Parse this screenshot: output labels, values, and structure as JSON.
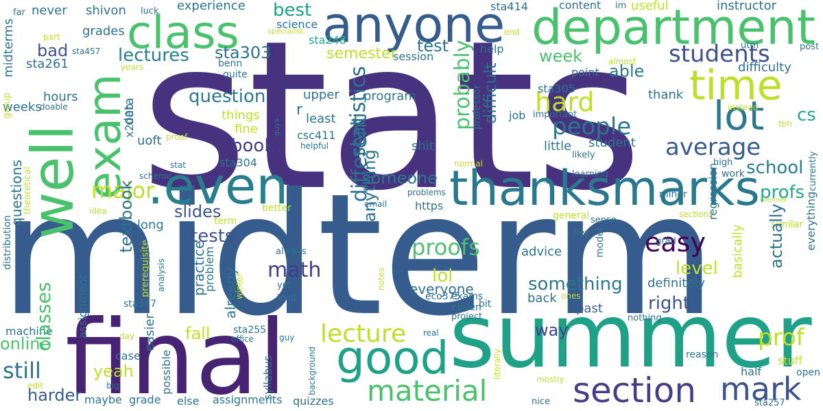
{
  "words": [
    {
      "text": "stats",
      "color": "#46327e"
    },
    {
      "text": "midterm",
      "color": "#365c8d"
    },
    {
      "text": "summer",
      "color": "#1fa187"
    },
    {
      "text": "final",
      "color": "#482374"
    },
    {
      "text": "department",
      "color": "#4ac16d"
    },
    {
      "text": "anyone",
      "color": "#365c8d"
    },
    {
      "text": "class",
      "color": "#4ac16d"
    },
    {
      "text": "well",
      "color": "#4ac16d"
    },
    {
      "text": "exam",
      "color": "#4ac16d"
    },
    {
      "text": "time",
      "color": "#bddf26"
    },
    {
      "text": "lot",
      "color": "#2a788e"
    },
    {
      "text": ".even",
      "color": "#277f8e"
    },
    {
      "text": "thanksmarks",
      "color": "#2a788e"
    },
    {
      "text": "good",
      "color": "#1fa187"
    },
    {
      "text": "material",
      "color": "#4ac16d"
    },
    {
      "text": "section",
      "color": "#433e85"
    },
    {
      "text": "mark",
      "color": "#3b528b"
    },
    {
      "text": "students",
      "color": "#3b528b"
    },
    {
      "text": "people",
      "color": "#2a788e"
    },
    {
      "text": "average",
      "color": "#365c8d"
    },
    {
      "text": "hard",
      "color": "#bddf26"
    },
    {
      "text": "easy",
      "color": "#440154"
    },
    {
      "text": "school",
      "color": "#277f8e"
    },
    {
      "text": "profs",
      "color": "#22a884"
    },
    {
      "text": "prof",
      "color": "#bddf26"
    },
    {
      "text": "cs",
      "color": "#22a884"
    },
    {
      "text": "lecture",
      "color": "#bddf26"
    },
    {
      "text": "lectures",
      "color": "#277f8e"
    },
    {
      "text": "sta303",
      "color": "#2c728e"
    },
    {
      "text": "question",
      "color": "#2a788e"
    },
    {
      "text": "book",
      "color": "#433e85"
    },
    {
      "text": "major",
      "color": "#bddf26"
    },
    {
      "text": "slides",
      "color": "#3b528b"
    },
    {
      "text": "tests",
      "color": "#3b528b"
    },
    {
      "text": "math",
      "color": "#433e85"
    },
    {
      "text": "proofs",
      "color": "#4ac16d"
    },
    {
      "text": "lol",
      "color": "#bddf26"
    },
    {
      "text": "something",
      "color": "#2a788e"
    },
    {
      "text": "right",
      "color": "#3b528b"
    },
    {
      "text": "level",
      "color": "#bddf26"
    },
    {
      "text": "still",
      "color": "#2c728e"
    },
    {
      "text": "online",
      "color": "#4ac16d"
    },
    {
      "text": "fall",
      "color": "#bddf26"
    },
    {
      "text": "yeah",
      "color": "#bddf26"
    },
    {
      "text": "harder",
      "color": "#365c8d"
    },
    {
      "text": "way",
      "color": "#433e85"
    },
    {
      "text": "best",
      "color": "#1fa187"
    },
    {
      "text": "test",
      "color": "#2c728e"
    },
    {
      "text": "semester",
      "color": "#bddf26"
    },
    {
      "text": "bad",
      "color": "#3b528b"
    },
    {
      "text": "week",
      "color": "#4ac16d"
    },
    {
      "text": "able",
      "color": "#2a788e"
    },
    {
      "text": "someone",
      "color": "#2a788e"
    },
    {
      "text": "everyone",
      "color": "#2c728e"
    },
    {
      "text": "definitely",
      "color": "#2c728e"
    },
    {
      "text": "past",
      "color": "#365c8d"
    },
    {
      "text": "back",
      "color": "#2c728e"
    },
    {
      "text": "advice",
      "color": "#2c728e"
    },
    {
      "text": "experience",
      "color": "#2a788e"
    },
    {
      "text": "never",
      "color": "#2c728e"
    },
    {
      "text": "shivon",
      "color": "#2c728e"
    },
    {
      "text": "grades",
      "color": "#2c728e"
    },
    {
      "text": "hours",
      "color": "#2c728e"
    },
    {
      "text": "weeks",
      "color": "#2c728e"
    },
    {
      "text": "long",
      "color": "#2a788e"
    },
    {
      "text": "sta261",
      "color": "#2c728e"
    },
    {
      "text": "sta248",
      "color": "#22a884"
    },
    {
      "text": "sta304",
      "color": "#2c728e"
    },
    {
      "text": "sta305",
      "color": "#2c728e"
    },
    {
      "text": "sta414",
      "color": "#2c728e"
    },
    {
      "text": "csc411",
      "color": "#2c728e"
    },
    {
      "text": "uoft",
      "color": "#2c728e"
    },
    {
      "text": "fine",
      "color": "#bddf26"
    },
    {
      "text": "things",
      "color": "#bddf26"
    },
    {
      "text": "least",
      "color": "#2c728e"
    },
    {
      "text": "program",
      "color": "#2c728e"
    },
    {
      "text": "upper",
      "color": "#2c728e"
    },
    {
      "text": "shit",
      "color": "#2c728e"
    },
    {
      "text": "little",
      "color": "#2c728e"
    },
    {
      "text": "student",
      "color": "#2c728e"
    },
    {
      "text": "thank",
      "color": "#2c728e"
    },
    {
      "text": "difficulty",
      "color": "#2c728e"
    },
    {
      "text": "instructor",
      "color": "#2c728e"
    },
    {
      "text": "useful",
      "color": "#bddf26"
    },
    {
      "text": "content",
      "color": "#2c728e"
    },
    {
      "text": "help",
      "color": "#2c728e"
    },
    {
      "text": "job",
      "color": "#2c728e"
    },
    {
      "text": "point",
      "color": "#2c728e"
    },
    {
      "text": "session",
      "color": "#2c728e"
    },
    {
      "text": "science",
      "color": "#2c728e"
    },
    {
      "text": "machine",
      "color": "#2c728e"
    },
    {
      "text": "case",
      "color": "#2c728e"
    },
    {
      "text": "maybe",
      "color": "#2c728e"
    },
    {
      "text": "grade",
      "color": "#2c728e"
    },
    {
      "text": "else",
      "color": "#2c728e"
    },
    {
      "text": "assignments",
      "color": "#2c728e"
    },
    {
      "text": "quizzes",
      "color": "#2c728e"
    },
    {
      "text": "half",
      "color": "#2c728e"
    },
    {
      "text": "stuff",
      "color": "#bddf26"
    },
    {
      "text": "open",
      "color": "#2c728e"
    },
    {
      "text": "reason",
      "color": "#2c728e"
    },
    {
      "text": "exams",
      "color": "#2c728e"
    },
    {
      "text": "ebden",
      "color": "#2c728e"
    },
    {
      "text": "eco375",
      "color": "#2c728e"
    },
    {
      "text": "https",
      "color": "#2c728e"
    },
    {
      "text": "general",
      "color": "#bddf26"
    },
    {
      "text": "similar",
      "color": "#bddf26"
    },
    {
      "text": "sta347",
      "color": "#2c728e"
    },
    {
      "text": "sta255",
      "color": "#2c728e"
    },
    {
      "text": "term",
      "color": "#bddf26"
    },
    {
      "text": "better",
      "color": "#bddf26"
    },
    {
      "text": "important",
      "color": "#2c728e"
    },
    {
      "text": "benn",
      "color": "#2c728e"
    },
    {
      "text": "quite",
      "color": "#2c728e"
    },
    {
      "text": "bit",
      "color": "#2c728e"
    },
    {
      "text": "project",
      "color": "#2c728e"
    },
    {
      "text": "nothing",
      "color": "#2c728e"
    },
    {
      "text": "hey",
      "color": "#2c728e"
    },
    {
      "text": "sense",
      "color": "#2c728e"
    },
    {
      "text": "grad",
      "color": "#2c728e"
    },
    {
      "text": "minor",
      "color": "#2c728e"
    },
    {
      "text": "work",
      "color": "#2c728e"
    },
    {
      "text": "high",
      "color": "#2c728e"
    },
    {
      "text": "likely",
      "color": "#2c728e"
    },
    {
      "text": "learning",
      "color": "#2c728e"
    },
    {
      "text": "always",
      "color": "#2c728e"
    },
    {
      "text": "yet",
      "color": "#2c728e"
    },
    {
      "text": "kind",
      "color": "#2c728e"
    },
    {
      "text": "email",
      "color": "#2c728e"
    },
    {
      "text": "problems",
      "color": "#2c728e"
    },
    {
      "text": "nice",
      "color": "#2c728e"
    },
    {
      "text": "sta257",
      "color": "#2c728e"
    },
    {
      "text": "post",
      "color": "#2c728e"
    },
    {
      "text": "utm",
      "color": "#2c728e"
    },
    {
      "text": "far",
      "color": "#2c728e"
    },
    {
      "text": "luck",
      "color": "#2c728e"
    },
    {
      "text": "im",
      "color": "#2c728e"
    },
    {
      "text": "part",
      "color": "#bddf26"
    },
    {
      "text": "sta457",
      "color": "#2c728e"
    },
    {
      "text": "specialist",
      "color": "#bddf26"
    },
    {
      "text": "end",
      "color": "#bddf26"
    },
    {
      "text": "years",
      "color": "#bddf26"
    },
    {
      "text": "almost",
      "color": "#bddf26"
    },
    {
      "text": "doable",
      "color": "#2c728e"
    },
    {
      "text": "helpful",
      "color": "#2c728e"
    },
    {
      "text": "stat",
      "color": "#2c728e"
    },
    {
      "text": "proof",
      "color": "#bddf26"
    },
    {
      "text": "scheme",
      "color": "#2c728e"
    },
    {
      "text": "idea",
      "color": "#bddf26"
    },
    {
      "text": "normal",
      "color": "#bddf26"
    },
    {
      "text": "instead",
      "color": "#bddf26"
    },
    {
      "text": "tbh",
      "color": "#bddf26"
    },
    {
      "text": "brenner",
      "color": "#bddf26"
    },
    {
      "text": "sections",
      "color": "#bddf26"
    },
    {
      "text": "ones",
      "color": "#bddf26"
    },
    {
      "text": "day",
      "color": "#bddf26"
    },
    {
      "text": "big",
      "color": "#2c728e"
    },
    {
      "text": "edit",
      "color": "#bddf26"
    },
    {
      "text": "guy",
      "color": "#2c728e"
    },
    {
      "text": "office",
      "color": "#2c728e"
    },
    {
      "text": "real",
      "color": "#2c728e"
    },
    {
      "text": "mostly",
      "color": "#bddf26"
    },
    {
      "text": "probably",
      "color": "#4ac16d"
    },
    {
      "text": "statistics",
      "color": "#2c728e"
    },
    {
      "text": "different",
      "color": "#2c728e"
    },
    {
      "text": "anything",
      "color": "#2c728e"
    },
    {
      "text": "difficult",
      "color": "#2c728e"
    },
    {
      "text": "professor",
      "color": "#2c728e"
    },
    {
      "text": "actually",
      "color": "#2c728e"
    },
    {
      "text": "basically",
      "color": "#bddf26"
    },
    {
      "text": "regression",
      "color": "#2c728e"
    },
    {
      "text": "everything",
      "color": "#2c728e"
    },
    {
      "text": "currently",
      "color": "#2c728e"
    },
    {
      "text": "midterms",
      "color": "#2c728e"
    },
    {
      "text": "group",
      "color": "#bddf26"
    },
    {
      "text": "questions",
      "color": "#2c728e"
    },
    {
      "text": "theoretical",
      "color": "#bddf26"
    },
    {
      "text": "distribution",
      "color": "#2c728e"
    },
    {
      "text": "classes",
      "color": "#4ac16d"
    },
    {
      "text": "x200b",
      "color": "#2c728e"
    },
    {
      "text": "data",
      "color": "#2c728e"
    },
    {
      "text": "textbook",
      "color": "#2c728e"
    },
    {
      "text": "already",
      "color": "#2c728e"
    },
    {
      "text": "assignment",
      "color": "#2c728e"
    },
    {
      "text": "prerequisite",
      "color": "#bddf26"
    },
    {
      "text": "easier",
      "color": "#2c728e"
    },
    {
      "text": "practice",
      "color": "#2c728e"
    },
    {
      "text": "analysis",
      "color": "#2c728e"
    },
    {
      "text": "problem",
      "color": "#2c728e"
    },
    {
      "text": "possible",
      "color": "#2c728e"
    },
    {
      "text": "syllabus",
      "color": "#2c728e"
    },
    {
      "text": "winter",
      "color": "#bddf26"
    },
    {
      "text": "notes",
      "color": "#bddf26"
    },
    {
      "text": "background",
      "color": "#2c728e"
    },
    {
      "text": "literally",
      "color": "#bddf26"
    },
    {
      "text": "model",
      "color": "#2c728e"
    },
    {
      "text": "r",
      "color": "#2c728e"
    },
    {
      "text": "f",
      "color": "#2c728e"
    },
    {
      "text": "guys",
      "color": "#2c728e"
    }
  ]
}
